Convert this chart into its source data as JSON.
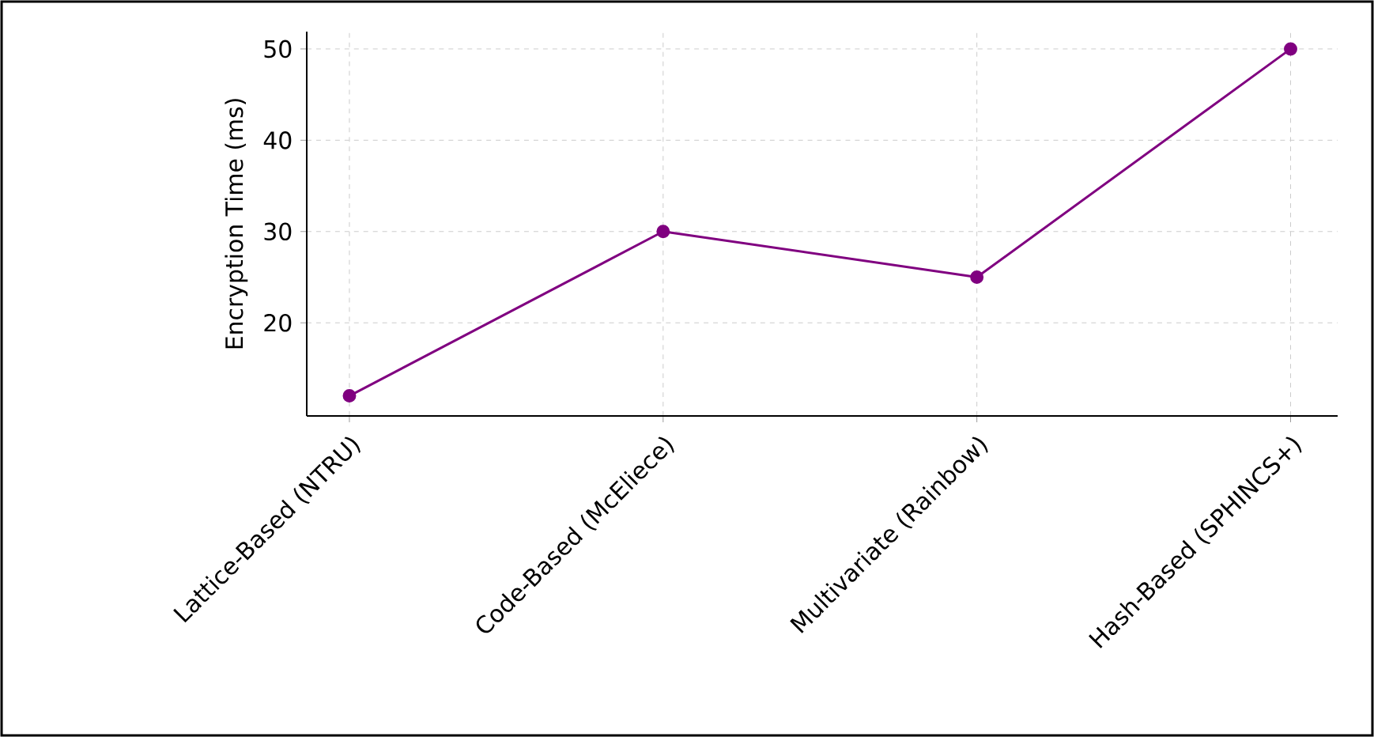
{
  "chart_data": {
    "type": "line",
    "ylabel": "Encryption Time (ms)",
    "categories": [
      "Lattice-Based (NTRU)",
      "Code-Based (McEliece)",
      "Multivariate (Rainbow)",
      "Hash-Based (SPHINCS+)"
    ],
    "values": [
      12,
      30,
      25,
      50
    ],
    "color": "#800080",
    "ylim": [
      9.8,
      51.9
    ],
    "yticks": [
      20,
      30,
      40,
      50
    ],
    "grid": true,
    "marker": "circle",
    "line_style": "solid"
  }
}
